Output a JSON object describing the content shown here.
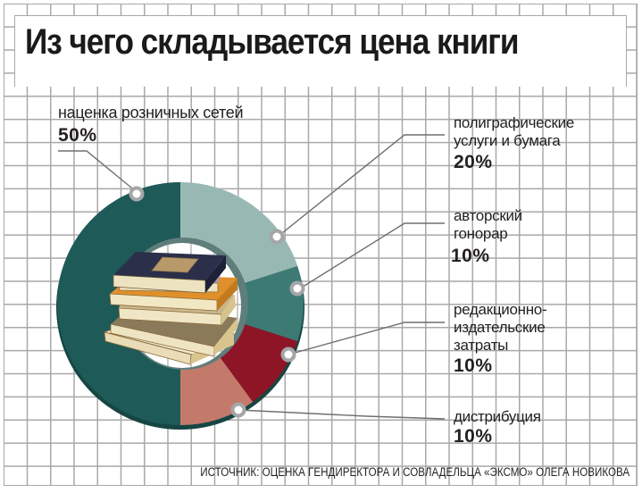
{
  "title": "Из чего складывается цена книги",
  "source": "ИСТОЧНИК: ОЦЕНКА ГЕНДИРЕКТОРА И СОВЛАДЕЛЬЦА «ЭКСМО» ОЛЕГА НОВИКОВА",
  "segments": [
    {
      "label": "наценка розничных сетей",
      "value_text": "50%",
      "color": "#1e5a57"
    },
    {
      "label_lines": [
        "полиграфические",
        "услуги и бумага"
      ],
      "value_text": "20%",
      "color": "#98b8b4"
    },
    {
      "label_lines": [
        "авторский",
        "гонорар"
      ],
      "value_text": "10%",
      "color": "#3d7a74"
    },
    {
      "label_lines": [
        "редакционно-",
        "издательские",
        "затраты"
      ],
      "value_text": "10%",
      "color": "#8e1526"
    },
    {
      "label": "дистрибуция",
      "value_text": "10%",
      "color": "#c47a6a"
    }
  ],
  "chart_data": {
    "type": "pie",
    "subtype": "donut",
    "title": "Из чего складывается цена книги",
    "categories": [
      "наценка розничных сетей",
      "полиграфические услуги и бумага",
      "авторский гонорар",
      "редакционно-издательские затраты",
      "дистрибуция"
    ],
    "values": [
      50,
      20,
      10,
      10,
      10
    ],
    "unit": "%",
    "colors": [
      "#1e5a57",
      "#98b8b4",
      "#3d7a74",
      "#8e1526",
      "#c47a6a"
    ],
    "center_image": "stack-of-books",
    "source": "ИСТОЧНИК: ОЦЕНКА ГЕНДИРЕКТОРА И СОВЛАДЕЛЬЦА «ЭКСМО» ОЛЕГА НОВИКОВА",
    "legend_position": "callouts"
  }
}
